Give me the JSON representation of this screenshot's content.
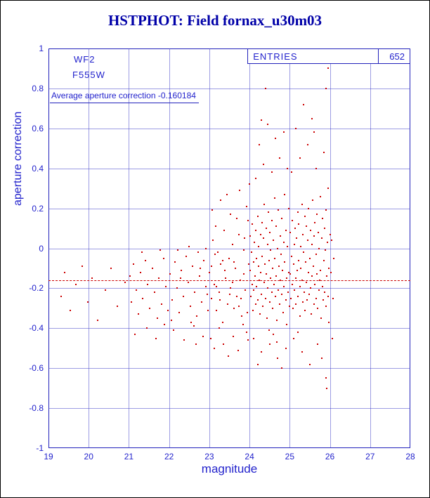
{
  "colors": {
    "title": "#0000a8",
    "axis_text": "#2222cc",
    "frame": "#2222bb",
    "points": "#cc0000",
    "reference_line": "#cc0000",
    "background": "#ffffff"
  },
  "chart_data": {
    "type": "scatter",
    "title": "HSTPHOT: Field fornax_u30m03",
    "xlabel": "magnitude",
    "ylabel": "aperture correction",
    "xlim": [
      19,
      28
    ],
    "ylim": [
      -1,
      1
    ],
    "grid": true,
    "legend_position": "top-right",
    "x_ticks": [
      19,
      20,
      21,
      22,
      23,
      24,
      25,
      26,
      27,
      28
    ],
    "x_tick_labels": [
      "19",
      "20",
      "21",
      "22",
      "23",
      "24",
      "25",
      "26",
      "27",
      "28"
    ],
    "y_ticks": [
      1,
      0.8,
      0.6,
      0.4,
      0.2,
      0,
      -0.2,
      -0.4,
      -0.6,
      -0.8,
      -1
    ],
    "y_tick_labels": [
      "1",
      "0.8",
      "0.6",
      "0.4",
      "0.2",
      "0",
      "-0.2",
      "-0.4",
      "-0.6",
      "-0.8",
      "-1"
    ],
    "annotations": {
      "detector": "WF2",
      "filter": "F555W",
      "average_text": "Average aperture correction -0.160184",
      "average_value": -0.160184,
      "entries_label": "ENTRIES",
      "entries_value": "652"
    },
    "reference_line": {
      "y": -0.160184,
      "style": "dashed"
    },
    "points": [
      [
        19.32,
        -0.24
      ],
      [
        19.41,
        -0.12
      ],
      [
        19.55,
        -0.31
      ],
      [
        19.68,
        -0.18
      ],
      [
        19.84,
        -0.09
      ],
      [
        19.97,
        -0.27
      ],
      [
        20.08,
        -0.15
      ],
      [
        20.22,
        -0.36
      ],
      [
        20.41,
        -0.21
      ],
      [
        20.55,
        -0.1
      ],
      [
        20.72,
        -0.29
      ],
      [
        20.91,
        -0.17
      ],
      [
        21.02,
        -0.14
      ],
      [
        21.07,
        -0.27
      ],
      [
        21.12,
        -0.08
      ],
      [
        21.18,
        -0.21
      ],
      [
        21.24,
        -0.33
      ],
      [
        21.29,
        -0.12
      ],
      [
        21.35,
        -0.25
      ],
      [
        21.41,
        -0.06
      ],
      [
        21.47,
        -0.18
      ],
      [
        21.52,
        -0.3
      ],
      [
        21.58,
        -0.1
      ],
      [
        21.64,
        -0.22
      ],
      [
        21.7,
        -0.35
      ],
      [
        21.75,
        -0.15
      ],
      [
        21.81,
        -0.28
      ],
      [
        21.87,
        -0.05
      ],
      [
        21.92,
        -0.19
      ],
      [
        21.97,
        -0.31
      ],
      [
        21.15,
        -0.43
      ],
      [
        21.45,
        -0.4
      ],
      [
        21.68,
        -0.45
      ],
      [
        21.88,
        -0.38
      ],
      [
        21.33,
        -0.02
      ],
      [
        21.78,
        -0.01
      ],
      [
        22.03,
        -0.13
      ],
      [
        22.08,
        -0.26
      ],
      [
        22.14,
        -0.07
      ],
      [
        22.19,
        -0.2
      ],
      [
        22.25,
        -0.32
      ],
      [
        22.31,
        -0.11
      ],
      [
        22.36,
        -0.24
      ],
      [
        22.42,
        -0.04
      ],
      [
        22.47,
        -0.17
      ],
      [
        22.53,
        -0.29
      ],
      [
        22.58,
        -0.09
      ],
      [
        22.64,
        -0.22
      ],
      [
        22.69,
        -0.34
      ],
      [
        22.75,
        -0.14
      ],
      [
        22.81,
        -0.27
      ],
      [
        22.86,
        -0.06
      ],
      [
        22.92,
        -0.19
      ],
      [
        22.97,
        -0.31
      ],
      [
        22.11,
        -0.41
      ],
      [
        22.38,
        -0.46
      ],
      [
        22.62,
        -0.39
      ],
      [
        22.84,
        -0.44
      ],
      [
        22.22,
        -0.01
      ],
      [
        22.49,
        0.01
      ],
      [
        22.73,
        -0.02
      ],
      [
        22.91,
        0.0
      ],
      [
        22.06,
        -0.36
      ],
      [
        22.28,
        -0.15
      ],
      [
        22.55,
        -0.37
      ],
      [
        22.77,
        -0.1
      ],
      [
        22.95,
        -0.23
      ],
      [
        22.67,
        -0.48
      ],
      [
        23.01,
        -0.12
      ],
      [
        23.05,
        -0.25
      ],
      [
        23.09,
        0.04
      ],
      [
        23.13,
        -0.18
      ],
      [
        23.17,
        -0.31
      ],
      [
        23.21,
        -0.02
      ],
      [
        23.25,
        -0.22
      ],
      [
        23.29,
        -0.08
      ],
      [
        23.33,
        -0.37
      ],
      [
        23.37,
        0.09
      ],
      [
        23.41,
        -0.15
      ],
      [
        23.45,
        -0.28
      ],
      [
        23.49,
        -0.05
      ],
      [
        23.53,
        -0.2
      ],
      [
        23.57,
        0.02
      ],
      [
        23.61,
        -0.3
      ],
      [
        23.65,
        -0.1
      ],
      [
        23.69,
        -0.24
      ],
      [
        23.73,
        0.07
      ],
      [
        23.77,
        -0.16
      ],
      [
        23.81,
        -0.34
      ],
      [
        23.85,
        -0.01
      ],
      [
        23.89,
        -0.21
      ],
      [
        23.93,
        -0.42
      ],
      [
        23.97,
        0.14
      ],
      [
        23.04,
        -0.45
      ],
      [
        23.12,
        -0.5
      ],
      [
        23.24,
        -0.4
      ],
      [
        23.36,
        -0.48
      ],
      [
        23.48,
        -0.54
      ],
      [
        23.6,
        -0.44
      ],
      [
        23.72,
        -0.51
      ],
      [
        23.84,
        -0.38
      ],
      [
        23.96,
        -0.46
      ],
      [
        23.08,
        0.19
      ],
      [
        23.28,
        0.24
      ],
      [
        23.52,
        0.17
      ],
      [
        23.76,
        0.29
      ],
      [
        23.92,
        0.21
      ],
      [
        23.16,
        0.11
      ],
      [
        23.44,
        0.27
      ],
      [
        23.68,
        0.15
      ],
      [
        23.88,
        0.05
      ],
      [
        23.99,
        0.32
      ],
      [
        23.06,
        -0.09
      ],
      [
        23.14,
        -0.03
      ],
      [
        23.26,
        -0.26
      ],
      [
        23.38,
        -0.11
      ],
      [
        23.5,
        -0.23
      ],
      [
        23.62,
        -0.07
      ],
      [
        23.74,
        -0.29
      ],
      [
        23.86,
        -0.13
      ],
      [
        23.94,
        -0.32
      ],
      [
        23.18,
        -0.19
      ],
      [
        23.34,
        -0.06
      ],
      [
        23.58,
        -0.17
      ],
      [
        23.78,
        -0.25
      ],
      [
        23.98,
        -0.08
      ],
      [
        24.01,
        -0.11
      ],
      [
        24.02,
        0.06
      ],
      [
        24.03,
        -0.24
      ],
      [
        24.05,
        -0.02
      ],
      [
        24.06,
        -0.18
      ],
      [
        24.07,
        0.12
      ],
      [
        24.08,
        -0.31
      ],
      [
        24.1,
        -0.07
      ],
      [
        24.11,
        -0.21
      ],
      [
        24.12,
        0.03
      ],
      [
        24.13,
        -0.14
      ],
      [
        24.15,
        -0.28
      ],
      [
        24.16,
        0.09
      ],
      [
        24.17,
        -0.05
      ],
      [
        24.18,
        -0.19
      ],
      [
        24.2,
        0.16
      ],
      [
        24.21,
        -0.26
      ],
      [
        24.22,
        -0.09
      ],
      [
        24.23,
        0.01
      ],
      [
        24.25,
        -0.16
      ],
      [
        24.26,
        -0.33
      ],
      [
        24.27,
        0.07
      ],
      [
        24.28,
        -0.12
      ],
      [
        24.3,
        -0.23
      ],
      [
        24.31,
        0.13
      ],
      [
        24.32,
        -0.04
      ],
      [
        24.33,
        -0.29
      ],
      [
        24.35,
        0.05
      ],
      [
        24.36,
        -0.17
      ],
      [
        24.37,
        0.22
      ],
      [
        24.38,
        -0.08
      ],
      [
        24.4,
        -0.25
      ],
      [
        24.41,
        0.1
      ],
      [
        24.42,
        -0.13
      ],
      [
        24.43,
        -0.35
      ],
      [
        24.45,
        0.02
      ],
      [
        24.46,
        -0.2
      ],
      [
        24.47,
        0.18
      ],
      [
        24.48,
        -0.06
      ],
      [
        24.5,
        -0.27
      ],
      [
        24.51,
        0.08
      ],
      [
        24.52,
        -0.15
      ],
      [
        24.53,
        -0.01
      ],
      [
        24.55,
        -0.22
      ],
      [
        24.56,
        0.14
      ],
      [
        24.57,
        -0.1
      ],
      [
        24.58,
        -0.3
      ],
      [
        24.6,
        0.04
      ],
      [
        24.61,
        -0.18
      ],
      [
        24.62,
        0.25
      ],
      [
        24.63,
        -0.05
      ],
      [
        24.65,
        -0.24
      ],
      [
        24.66,
        0.11
      ],
      [
        24.67,
        -0.14
      ],
      [
        24.68,
        -0.36
      ],
      [
        24.7,
        0.0
      ],
      [
        24.71,
        -0.21
      ],
      [
        24.72,
        0.19
      ],
      [
        24.73,
        -0.09
      ],
      [
        24.75,
        -0.28
      ],
      [
        24.76,
        0.06
      ],
      [
        24.77,
        -0.16
      ],
      [
        24.78,
        -0.03
      ],
      [
        24.8,
        -0.23
      ],
      [
        24.81,
        0.15
      ],
      [
        24.82,
        -0.11
      ],
      [
        24.83,
        -0.32
      ],
      [
        24.85,
        0.03
      ],
      [
        24.86,
        -0.19
      ],
      [
        24.87,
        0.27
      ],
      [
        24.88,
        -0.07
      ],
      [
        24.9,
        -0.26
      ],
      [
        24.91,
        0.09
      ],
      [
        24.92,
        -0.15
      ],
      [
        24.93,
        -0.38
      ],
      [
        24.95,
        0.01
      ],
      [
        24.96,
        -0.22
      ],
      [
        24.97,
        0.2
      ],
      [
        24.98,
        -0.12
      ],
      [
        24.99,
        -0.29
      ],
      [
        24.15,
        0.35
      ],
      [
        24.35,
        0.42
      ],
      [
        24.55,
        0.38
      ],
      [
        24.75,
        0.45
      ],
      [
        24.95,
        0.4
      ],
      [
        24.25,
        0.52
      ],
      [
        24.65,
        0.55
      ],
      [
        24.45,
        0.62
      ],
      [
        24.85,
        0.58
      ],
      [
        24.4,
        0.8
      ],
      [
        24.42,
        0.95
      ],
      [
        24.3,
        0.64
      ],
      [
        24.1,
        -0.45
      ],
      [
        24.3,
        -0.52
      ],
      [
        24.5,
        -0.48
      ],
      [
        24.7,
        -0.55
      ],
      [
        24.9,
        -0.5
      ],
      [
        24.2,
        -0.58
      ],
      [
        24.6,
        -0.43
      ],
      [
        24.8,
        -0.6
      ],
      [
        24.48,
        -0.41
      ],
      [
        24.68,
        -0.47
      ],
      [
        25.01,
        -0.13
      ],
      [
        25.02,
        0.08
      ],
      [
        25.03,
        -0.25
      ],
      [
        25.05,
        -0.04
      ],
      [
        25.06,
        -0.18
      ],
      [
        25.07,
        0.14
      ],
      [
        25.08,
        -0.3
      ],
      [
        25.1,
        -0.08
      ],
      [
        25.11,
        0.02
      ],
      [
        25.12,
        -0.21
      ],
      [
        25.13,
        0.1
      ],
      [
        25.15,
        -0.15
      ],
      [
        25.16,
        -0.28
      ],
      [
        25.17,
        0.05
      ],
      [
        25.18,
        -0.11
      ],
      [
        25.2,
        0.18
      ],
      [
        25.21,
        -0.24
      ],
      [
        25.22,
        -0.06
      ],
      [
        25.23,
        0.12
      ],
      [
        25.25,
        -0.19
      ],
      [
        25.26,
        -0.34
      ],
      [
        25.27,
        0.01
      ],
      [
        25.28,
        -0.1
      ],
      [
        25.3,
        0.22
      ],
      [
        25.31,
        -0.16
      ],
      [
        25.32,
        -0.27
      ],
      [
        25.33,
        0.07
      ],
      [
        25.35,
        -0.02
      ],
      [
        25.36,
        -0.22
      ],
      [
        25.37,
        0.16
      ],
      [
        25.38,
        -0.31
      ],
      [
        25.4,
        -0.07
      ],
      [
        25.41,
        0.11
      ],
      [
        25.42,
        -0.17
      ],
      [
        25.43,
        -0.26
      ],
      [
        25.45,
        0.04
      ],
      [
        25.46,
        -0.12
      ],
      [
        25.47,
        0.2
      ],
      [
        25.48,
        -0.23
      ],
      [
        25.5,
        -0.05
      ],
      [
        25.51,
        0.09
      ],
      [
        25.52,
        -0.2
      ],
      [
        25.53,
        -0.33
      ],
      [
        25.55,
        0.02
      ],
      [
        25.56,
        -0.14
      ],
      [
        25.57,
        0.24
      ],
      [
        25.58,
        -0.09
      ],
      [
        25.6,
        -0.28
      ],
      [
        25.61,
        0.06
      ],
      [
        25.62,
        -0.18
      ],
      [
        25.63,
        0.13
      ],
      [
        25.65,
        -0.25
      ],
      [
        25.66,
        -0.03
      ],
      [
        25.67,
        0.17
      ],
      [
        25.68,
        -0.13
      ],
      [
        25.7,
        -0.3
      ],
      [
        25.71,
        0.08
      ],
      [
        25.72,
        -0.21
      ],
      [
        25.73,
        0.0
      ],
      [
        25.75,
        -0.16
      ],
      [
        25.76,
        0.26
      ],
      [
        25.77,
        -0.11
      ],
      [
        25.78,
        -0.35
      ],
      [
        25.8,
        0.05
      ],
      [
        25.81,
        -0.19
      ],
      [
        25.82,
        0.15
      ],
      [
        25.83,
        -0.26
      ],
      [
        25.85,
        -0.06
      ],
      [
        25.86,
        0.1
      ],
      [
        25.87,
        -0.22
      ],
      [
        25.88,
        -0.01
      ],
      [
        25.9,
        -0.29
      ],
      [
        25.91,
        0.19
      ],
      [
        25.92,
        -0.14
      ],
      [
        25.93,
        0.03
      ],
      [
        25.95,
        -0.24
      ],
      [
        25.96,
        0.3
      ],
      [
        25.97,
        -0.1
      ],
      [
        25.98,
        -0.37
      ],
      [
        26.0,
        0.07
      ],
      [
        25.05,
        0.38
      ],
      [
        25.25,
        0.45
      ],
      [
        25.45,
        0.52
      ],
      [
        25.65,
        0.4
      ],
      [
        25.85,
        0.48
      ],
      [
        25.15,
        0.6
      ],
      [
        25.55,
        0.65
      ],
      [
        25.35,
        0.72
      ],
      [
        25.42,
        0.95
      ],
      [
        25.95,
        0.9
      ],
      [
        25.9,
        0.8
      ],
      [
        25.6,
        0.58
      ],
      [
        25.1,
        -0.45
      ],
      [
        25.3,
        -0.52
      ],
      [
        25.5,
        -0.58
      ],
      [
        25.7,
        -0.48
      ],
      [
        25.9,
        -0.65
      ],
      [
        25.92,
        -0.7
      ],
      [
        25.2,
        -0.42
      ],
      [
        25.8,
        -0.55
      ],
      [
        26.02,
        -0.12
      ],
      [
        26.05,
        0.04
      ],
      [
        26.08,
        -0.25
      ],
      [
        26.03,
        0.95
      ],
      [
        26.06,
        -0.45
      ],
      [
        26.1,
        -0.05
      ]
    ]
  }
}
